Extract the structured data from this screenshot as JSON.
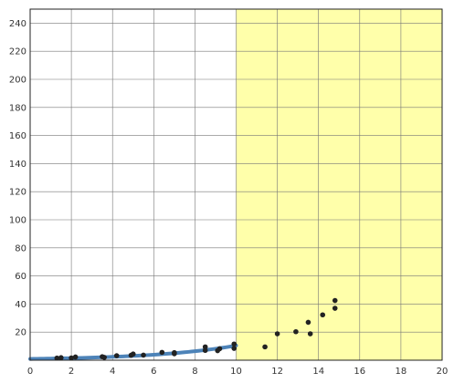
{
  "chart_data": {
    "type": "scatter",
    "title": "",
    "xlabel": "",
    "ylabel": "",
    "xlim": [
      0,
      20
    ],
    "ylim": [
      0,
      250
    ],
    "x_ticks": [
      0,
      2,
      4,
      6,
      8,
      10,
      12,
      14,
      16,
      18,
      20
    ],
    "y_ticks": [
      20,
      40,
      60,
      80,
      100,
      120,
      140,
      160,
      180,
      200,
      220,
      240
    ],
    "grid": true,
    "highlight_region": {
      "x_from": 10,
      "x_to": 20,
      "color": "#ffffaa"
    },
    "points": [
      {
        "x": 1.3,
        "y": 1.5
      },
      {
        "x": 1.5,
        "y": 1.8
      },
      {
        "x": 2.0,
        "y": 1.6
      },
      {
        "x": 2.2,
        "y": 2.3
      },
      {
        "x": 3.5,
        "y": 2.5
      },
      {
        "x": 3.6,
        "y": 2.0
      },
      {
        "x": 4.2,
        "y": 3.2
      },
      {
        "x": 4.9,
        "y": 3.5
      },
      {
        "x": 5.0,
        "y": 4.4
      },
      {
        "x": 5.5,
        "y": 3.6
      },
      {
        "x": 6.4,
        "y": 5.6
      },
      {
        "x": 7.0,
        "y": 4.6
      },
      {
        "x": 7.0,
        "y": 5.4
      },
      {
        "x": 8.5,
        "y": 7.0
      },
      {
        "x": 8.5,
        "y": 9.5
      },
      {
        "x": 9.1,
        "y": 6.8
      },
      {
        "x": 9.2,
        "y": 8.2
      },
      {
        "x": 9.9,
        "y": 8.4
      },
      {
        "x": 9.9,
        "y": 11.5
      },
      {
        "x": 11.4,
        "y": 9.5
      },
      {
        "x": 12.0,
        "y": 18.8
      },
      {
        "x": 12.9,
        "y": 20.3
      },
      {
        "x": 13.5,
        "y": 27.0
      },
      {
        "x": 13.6,
        "y": 18.8
      },
      {
        "x": 14.2,
        "y": 32.3
      },
      {
        "x": 14.8,
        "y": 37.0
      },
      {
        "x": 14.8,
        "y": 42.5
      }
    ],
    "fit_line": {
      "color": "#4d83b8",
      "x_from": 0,
      "x_to": 10,
      "y_at_x0": 0.9,
      "growth_rate": 0.245
    },
    "colors": {
      "point": "#222222",
      "grid": "#777777",
      "axis": "#222222"
    }
  }
}
